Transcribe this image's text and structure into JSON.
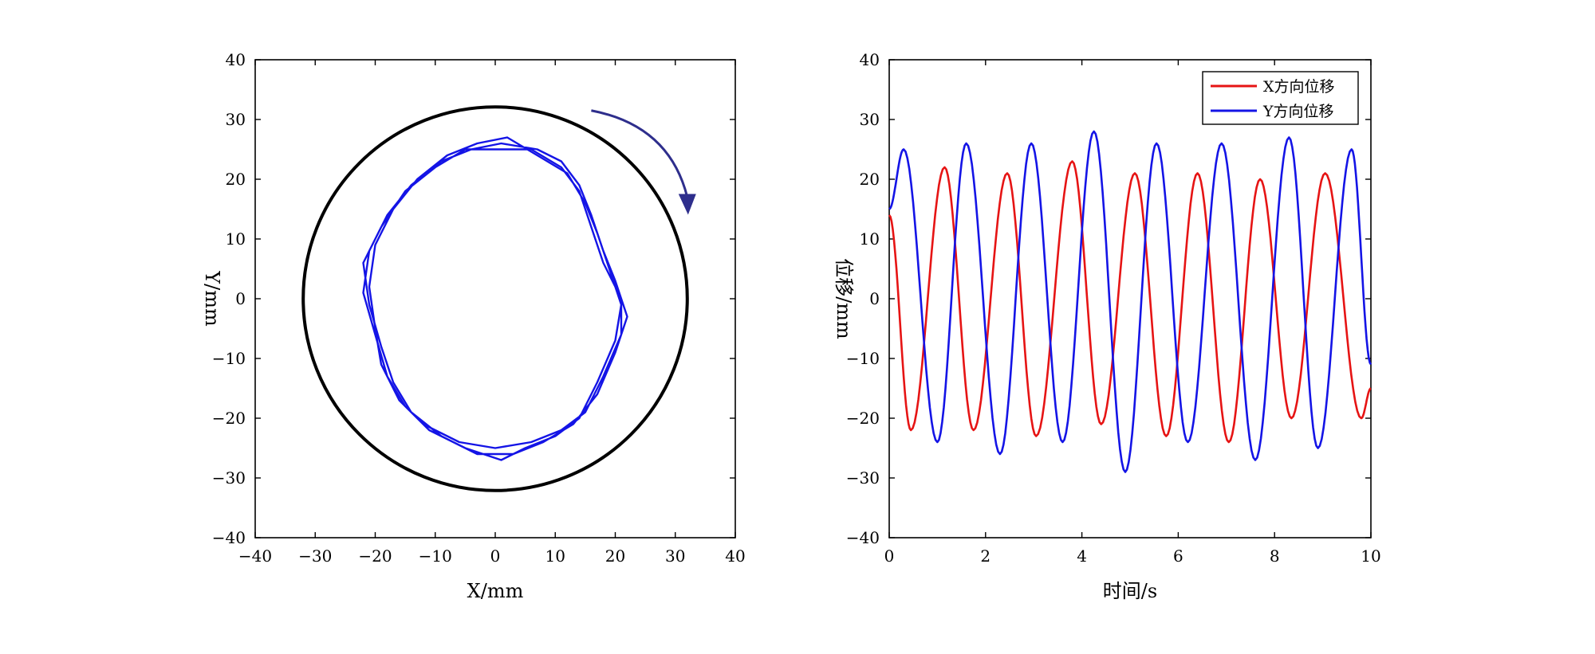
{
  "chart_data": [
    {
      "type": "line",
      "subtype": "xy-trajectory",
      "title": "",
      "xlabel": "X/mm",
      "ylabel": "Y/mm",
      "xlim": [
        -40,
        40
      ],
      "ylim": [
        -40,
        40
      ],
      "xticks": [
        -40,
        -30,
        -20,
        -10,
        0,
        10,
        20,
        30,
        40
      ],
      "yticks": [
        -40,
        -30,
        -20,
        -10,
        0,
        10,
        20,
        30,
        40
      ],
      "tick_labels_x": [
        "−40",
        "−30",
        "−20",
        "−10",
        "0",
        "10",
        "20",
        "30",
        "40"
      ],
      "tick_labels_y": [
        "40",
        "30",
        "20",
        "10",
        "0",
        "−10",
        "−20",
        "−30",
        "−40"
      ],
      "grid": false,
      "boundary_circle": {
        "center": [
          0,
          0
        ],
        "radius": 32,
        "color": "#000000"
      },
      "rotation_arrow": {
        "direction": "clockwise",
        "color": "#2e2e8c"
      },
      "series": [
        {
          "color": "#1414e6",
          "description_of_shape": "multiple overlapping loops near a ring of radius ~22",
          "points": [
            [
              0,
              25
            ],
            [
              6,
              25
            ],
            [
              11,
              22
            ],
            [
              14,
              18
            ],
            [
              16,
              12
            ],
            [
              18,
              6
            ],
            [
              21,
              0
            ],
            [
              21,
              -6
            ],
            [
              18,
              -13
            ],
            [
              15,
              -19
            ],
            [
              11,
              -22
            ],
            [
              6,
              -24
            ],
            [
              0,
              -25
            ],
            [
              -6,
              -24
            ],
            [
              -12,
              -21
            ],
            [
              -16,
              -17
            ],
            [
              -19,
              -11
            ],
            [
              -20,
              -5
            ],
            [
              -21,
              2
            ],
            [
              -20,
              9
            ],
            [
              -17,
              15
            ],
            [
              -13,
              20
            ],
            [
              -8,
              24
            ],
            [
              -3,
              26
            ],
            [
              2,
              27
            ],
            [
              7,
              24
            ],
            [
              12,
              21
            ],
            [
              15,
              16
            ],
            [
              17,
              11
            ],
            [
              19,
              5
            ],
            [
              21,
              -1
            ],
            [
              20,
              -7
            ],
            [
              17,
              -14
            ],
            [
              14,
              -20
            ],
            [
              10,
              -23
            ],
            [
              5,
              -25
            ],
            [
              1,
              -27
            ],
            [
              -5,
              -25
            ],
            [
              -11,
              -22
            ],
            [
              -15,
              -18
            ],
            [
              -18,
              -13
            ],
            [
              -20,
              -6
            ],
            [
              -22,
              1
            ],
            [
              -21,
              8
            ],
            [
              -18,
              14
            ],
            [
              -14,
              19
            ],
            [
              -9,
              23
            ],
            [
              -4,
              25
            ],
            [
              1,
              26
            ],
            [
              7,
              25
            ],
            [
              11,
              23
            ],
            [
              14,
              19
            ],
            [
              16,
              14
            ],
            [
              18,
              8
            ],
            [
              20,
              3
            ],
            [
              22,
              -3
            ],
            [
              20,
              -9
            ],
            [
              17,
              -16
            ],
            [
              13,
              -21
            ],
            [
              8,
              -24
            ],
            [
              3,
              -26
            ],
            [
              -3,
              -26
            ],
            [
              -9,
              -23
            ],
            [
              -14,
              -19
            ],
            [
              -17,
              -14
            ],
            [
              -19,
              -8
            ],
            [
              -21,
              -1
            ],
            [
              -22,
              6
            ],
            [
              -19,
              12
            ],
            [
              -15,
              18
            ],
            [
              -10,
              22
            ],
            [
              -5,
              25
            ],
            [
              0,
              25
            ]
          ]
        }
      ]
    },
    {
      "type": "line",
      "title": "",
      "xlabel": "时间/s",
      "ylabel": "位移/mm",
      "xlim": [
        0,
        10
      ],
      "ylim": [
        -40,
        40
      ],
      "xticks": [
        0,
        2,
        4,
        6,
        8,
        10
      ],
      "yticks": [
        -40,
        -30,
        -20,
        -10,
        0,
        10,
        20,
        30,
        40
      ],
      "tick_labels_x": [
        "0",
        "2",
        "4",
        "6",
        "8",
        "10"
      ],
      "tick_labels_y": [
        "40",
        "30",
        "20",
        "10",
        "0",
        "−10",
        "−20",
        "−30",
        "−40"
      ],
      "grid": false,
      "legend_position": "top-right",
      "series": [
        {
          "name": "X方向位移",
          "color": "#e61414",
          "peaks": [
            {
              "t": 0.0,
              "v": 14
            },
            {
              "t": 0.45,
              "v": -22
            },
            {
              "t": 1.15,
              "v": 22
            },
            {
              "t": 1.75,
              "v": -22
            },
            {
              "t": 2.45,
              "v": 21
            },
            {
              "t": 3.05,
              "v": -23
            },
            {
              "t": 3.8,
              "v": 23
            },
            {
              "t": 4.4,
              "v": -21
            },
            {
              "t": 5.1,
              "v": 21
            },
            {
              "t": 5.75,
              "v": -23
            },
            {
              "t": 6.4,
              "v": 21
            },
            {
              "t": 7.05,
              "v": -24
            },
            {
              "t": 7.7,
              "v": 20
            },
            {
              "t": 8.35,
              "v": -20
            },
            {
              "t": 9.05,
              "v": 21
            },
            {
              "t": 9.8,
              "v": -20
            },
            {
              "t": 10.0,
              "v": -15
            }
          ]
        },
        {
          "name": "Y方向位移",
          "color": "#1414e6",
          "peaks": [
            {
              "t": 0.0,
              "v": 15
            },
            {
              "t": 0.3,
              "v": 25
            },
            {
              "t": 1.0,
              "v": -24
            },
            {
              "t": 1.6,
              "v": 26
            },
            {
              "t": 2.3,
              "v": -26
            },
            {
              "t": 2.95,
              "v": 26
            },
            {
              "t": 3.6,
              "v": -24
            },
            {
              "t": 4.25,
              "v": 28
            },
            {
              "t": 4.9,
              "v": -29
            },
            {
              "t": 5.55,
              "v": 26
            },
            {
              "t": 6.2,
              "v": -24
            },
            {
              "t": 6.9,
              "v": 26
            },
            {
              "t": 7.6,
              "v": -27
            },
            {
              "t": 8.3,
              "v": 27
            },
            {
              "t": 8.9,
              "v": -25
            },
            {
              "t": 9.6,
              "v": 25
            },
            {
              "t": 10.0,
              "v": -11
            }
          ]
        }
      ]
    }
  ]
}
